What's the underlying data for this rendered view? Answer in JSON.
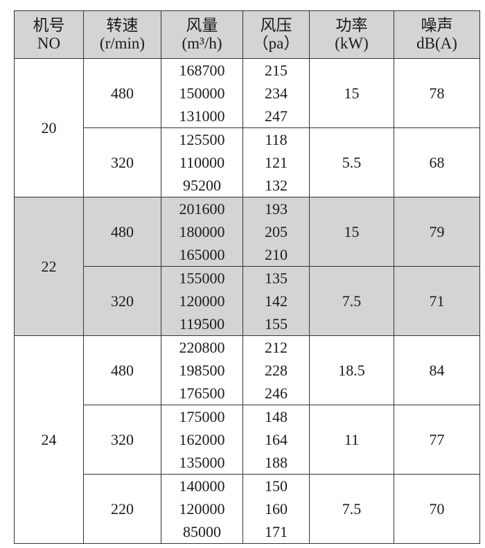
{
  "header": [
    {
      "line1": "机号",
      "line2": "NO"
    },
    {
      "line1": "转速",
      "line2": "(r/min)"
    },
    {
      "line1": "风量",
      "line2": "(m³/h)"
    },
    {
      "line1": "风压",
      "line2": "（pa）"
    },
    {
      "line1": "功率",
      "line2": "(kW)"
    },
    {
      "line1": "噪声",
      "line2": "dB(A)"
    }
  ],
  "shade_color": "#d4d4d4",
  "groups": [
    {
      "no": "20",
      "shaded": false,
      "speeds": [
        {
          "rpm": "480",
          "power": "15",
          "noise": "78",
          "rows": [
            [
              "168700",
              "215"
            ],
            [
              "150000",
              "234"
            ],
            [
              "131000",
              "247"
            ]
          ]
        },
        {
          "rpm": "320",
          "power": "5.5",
          "noise": "68",
          "rows": [
            [
              "125500",
              "118"
            ],
            [
              "110000",
              "121"
            ],
            [
              "95200",
              "132"
            ]
          ]
        }
      ]
    },
    {
      "no": "22",
      "shaded": true,
      "speeds": [
        {
          "rpm": "480",
          "power": "15",
          "noise": "79",
          "rows": [
            [
              "201600",
              "193"
            ],
            [
              "180000",
              "205"
            ],
            [
              "165000",
              "210"
            ]
          ]
        },
        {
          "rpm": "320",
          "power": "7.5",
          "noise": "71",
          "rows": [
            [
              "155000",
              "135"
            ],
            [
              "120000",
              "142"
            ],
            [
              "119500",
              "155"
            ]
          ]
        }
      ]
    },
    {
      "no": "24",
      "shaded": false,
      "speeds": [
        {
          "rpm": "480",
          "power": "18.5",
          "noise": "84",
          "rows": [
            [
              "220800",
              "212"
            ],
            [
              "198500",
              "228"
            ],
            [
              "176500",
              "246"
            ]
          ]
        },
        {
          "rpm": "320",
          "power": "11",
          "noise": "77",
          "rows": [
            [
              "175000",
              "148"
            ],
            [
              "162000",
              "164"
            ],
            [
              "135000",
              "188"
            ]
          ]
        },
        {
          "rpm": "220",
          "power": "7.5",
          "noise": "70",
          "rows": [
            [
              "140000",
              "150"
            ],
            [
              "120000",
              "160"
            ],
            [
              "85000",
              "171"
            ]
          ]
        }
      ]
    }
  ]
}
